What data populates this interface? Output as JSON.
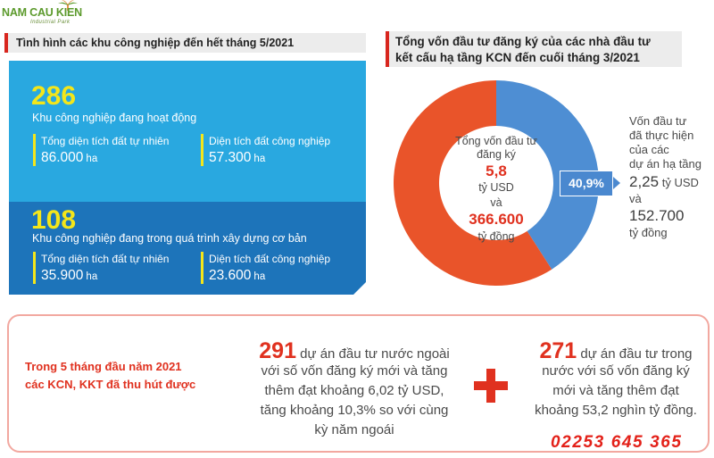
{
  "logo": {
    "brand": "NAM CAU KIEN",
    "tagline": "Industrial Park"
  },
  "industrial_parks": {
    "title": "Tình hình các khu công nghiệp đến hết tháng 5/2021",
    "operating": {
      "count": "286",
      "label": "Khu công nghiệp đang hoạt động",
      "natural_area": {
        "label": "Tổng diện tích đất tự nhiên",
        "value": "86.000",
        "unit": "ha"
      },
      "industrial_area": {
        "label": "Diện tích đất công nghiệp",
        "value": "57.300",
        "unit": "ha"
      }
    },
    "under_construction": {
      "count": "108",
      "label": "Khu công nghiệp đang trong quá trình xây dựng cơ bản",
      "natural_area": {
        "label": "Tổng diện tích đất tự nhiên",
        "value": "35.900",
        "unit": "ha"
      },
      "industrial_area": {
        "label": "Diện tích đất công nghiệp",
        "value": "23.600",
        "unit": "ha"
      }
    }
  },
  "chart_data": {
    "type": "pie",
    "donut": true,
    "title": [
      "Tổng vốn đầu tư đăng ký của các nhà đầu tư",
      "kết cấu hạ tầng KCN đến cuối tháng 3/2021"
    ],
    "slices": [
      {
        "label": "40,9%",
        "value": 40.9,
        "color": "#4e8ed3"
      },
      {
        "value": 59.1,
        "color": "#e9542a"
      }
    ],
    "center_text": {
      "line1": "Tổng vốn đầu tư",
      "line2": "đăng ký",
      "usd_value": "5,8",
      "usd_unit": "tỷ USD",
      "and": "và",
      "vnd_value": "366.600",
      "vnd_unit": "tỷ đồng"
    },
    "side_text": {
      "lines": [
        "Vốn đầu tư",
        "đã thực hiện",
        "của các",
        "dự án hạ tầng"
      ],
      "usd_value": "2,25",
      "usd_unit": "tỷ USD",
      "and": "và",
      "vnd_value": "152.700",
      "vnd_unit": "tỷ đồng"
    }
  },
  "summary": {
    "intro": [
      "Trong 5 tháng đầu năm 2021",
      "các KCN, KKT đã thu hút được"
    ],
    "foreign": {
      "count": "291",
      "lines": [
        "dự án đầu tư nước ngoài",
        "với số vốn đăng ký mới và tăng",
        "thêm đạt khoảng 6,02 tỷ USD,",
        "tăng khoảng 10,3% so với cùng",
        "kỳ năm ngoái"
      ]
    },
    "domestic": {
      "count": "271",
      "lines": [
        "dự án đầu tư trong",
        "nước với số vốn đăng ký",
        "mới và tăng thêm đạt",
        "khoảng 53,2 nghìn tỷ đồng."
      ]
    }
  },
  "phone": "02253 645 365",
  "colors": {
    "accent_red": "#e0311f",
    "light_blue": "#29a8e0",
    "dark_blue": "#1d74ba",
    "highlight_yellow": "#f4e61a"
  }
}
